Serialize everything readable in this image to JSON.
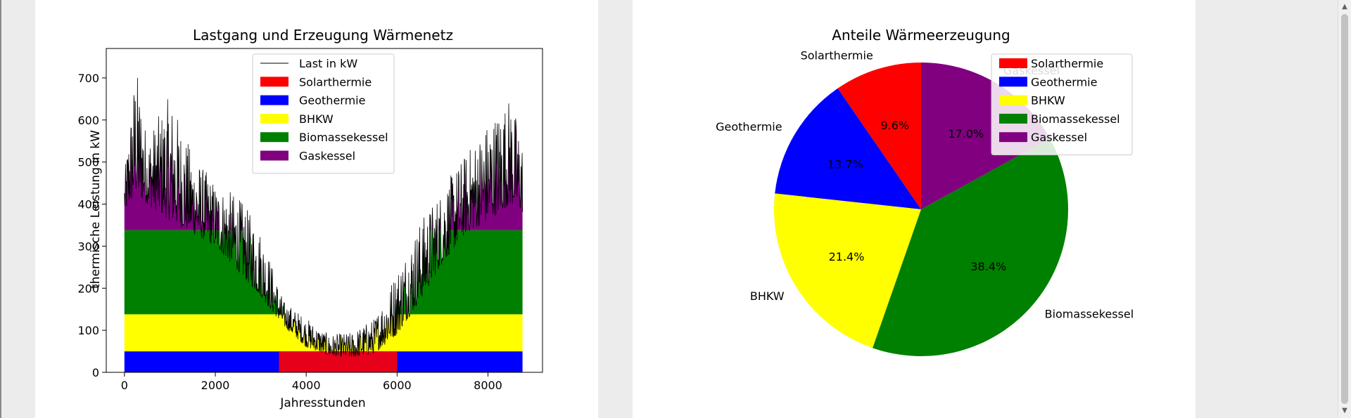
{
  "charts": {
    "line_chart": {
      "type": "area",
      "title": "Lastgang und Erzeugung Wärmenetz",
      "xlabel": "Jahresstunden",
      "ylabel": "thermische Leistung in kW",
      "xlim": [
        -400,
        9200
      ],
      "ylim": [
        0,
        770
      ],
      "xticks": [
        0,
        2000,
        4000,
        6000,
        8000
      ],
      "yticks": [
        0,
        100,
        200,
        300,
        400,
        500,
        600,
        700
      ],
      "legend_position": "top-center",
      "legend": [
        {
          "label": "Last in kW",
          "color": "#000000",
          "kind": "line"
        },
        {
          "label": "Solarthermie",
          "color": "#ff0000",
          "kind": "patch"
        },
        {
          "label": "Geothermie",
          "color": "#0000ff",
          "kind": "patch"
        },
        {
          "label": "BHKW",
          "color": "#ffff00",
          "kind": "patch"
        },
        {
          "label": "Biomassekessel",
          "color": "#008000",
          "kind": "patch"
        },
        {
          "label": "Gaskessel",
          "color": "#800080",
          "kind": "patch"
        }
      ],
      "load_profile_envelope": {
        "x": [
          0,
          250,
          500,
          1000,
          1500,
          2000,
          2500,
          3000,
          3500,
          4000,
          4500,
          5000,
          5500,
          6000,
          6500,
          7000,
          7500,
          8000,
          8500,
          8760
        ],
        "base": [
          380,
          420,
          400,
          360,
          330,
          300,
          240,
          180,
          110,
          60,
          40,
          35,
          45,
          90,
          170,
          260,
          330,
          360,
          400,
          380
        ],
        "peak": [
          470,
          740,
          560,
          660,
          520,
          450,
          420,
          340,
          170,
          130,
          90,
          95,
          130,
          250,
          360,
          440,
          520,
          600,
          660,
          550
        ]
      },
      "capacities_kW": {
        "Geothermie": 50,
        "BHKW": 88,
        "Biomassekessel": 200
      }
    },
    "pie_chart": {
      "type": "pie",
      "title": "Anteile Wärmeerzeugung",
      "legend_position": "top-right",
      "slices": [
        {
          "label": "Solarthermie",
          "value": 9.6,
          "pct_label": "9.6%",
          "color": "#ff0000"
        },
        {
          "label": "Geothermie",
          "value": 13.7,
          "pct_label": "13.7%",
          "color": "#0000ff"
        },
        {
          "label": "BHKW",
          "value": 21.4,
          "pct_label": "21.4%",
          "color": "#ffff00"
        },
        {
          "label": "Biomassekessel",
          "value": 38.4,
          "pct_label": "38.4%",
          "color": "#008000"
        },
        {
          "label": "Gaskessel",
          "value": 17.0,
          "pct_label": "17.0%",
          "color": "#800080"
        }
      ]
    }
  },
  "chart_data": [
    {
      "type": "area",
      "title": "Lastgang und Erzeugung Wärmenetz",
      "xlabel": "Jahresstunden",
      "ylabel": "thermische Leistung in kW",
      "xlim": [
        -400,
        9200
      ],
      "ylim": [
        0,
        770
      ],
      "series": [
        {
          "name": "Last in kW",
          "type": "line",
          "approx_peak_values": {
            "0": 470,
            "250": 740,
            "1000": 660,
            "2000": 450,
            "3000": 340,
            "4000": 130,
            "5000": 95,
            "6000": 250,
            "7000": 440,
            "8000": 600,
            "8500": 660
          }
        },
        {
          "name": "Solarthermie",
          "type": "stacked-area"
        },
        {
          "name": "Geothermie",
          "type": "stacked-area",
          "capacity": 50
        },
        {
          "name": "BHKW",
          "type": "stacked-area",
          "capacity": 88
        },
        {
          "name": "Biomassekessel",
          "type": "stacked-area",
          "capacity": 200
        },
        {
          "name": "Gaskessel",
          "type": "stacked-area"
        }
      ]
    },
    {
      "type": "pie",
      "title": "Anteile Wärmeerzeugung",
      "categories": [
        "Solarthermie",
        "Geothermie",
        "BHKW",
        "Biomassekessel",
        "Gaskessel"
      ],
      "values": [
        9.6,
        13.7,
        21.4,
        38.4,
        17.0
      ]
    }
  ]
}
